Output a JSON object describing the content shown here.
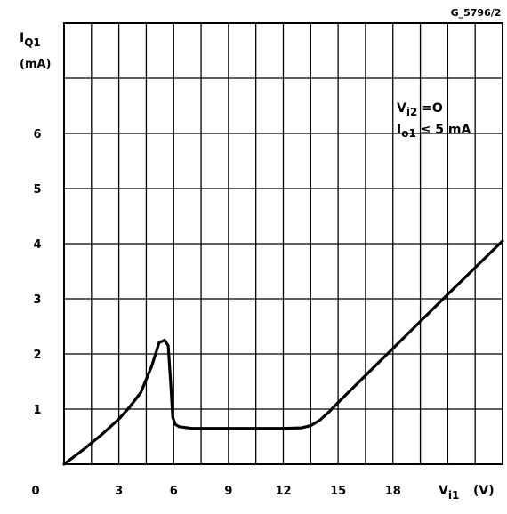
{
  "figure_code": "G_5796/2",
  "chart_data": {
    "type": "line",
    "ylabel_main": "I",
    "ylabel_sub": "Q1",
    "yunit": "(mA)",
    "xlabel_main": "V",
    "xlabel_sub": "i1",
    "xunit": "(V)",
    "xlim": [
      0,
      24
    ],
    "ylim": [
      0,
      8
    ],
    "x_ticks": [
      {
        "value": 0,
        "label": "0"
      },
      {
        "value": 3,
        "label": "3"
      },
      {
        "value": 6,
        "label": "6"
      },
      {
        "value": 9,
        "label": "9"
      },
      {
        "value": 12,
        "label": "12"
      },
      {
        "value": 15,
        "label": "15"
      },
      {
        "value": 18,
        "label": "18"
      }
    ],
    "y_ticks": [
      {
        "value": 1,
        "label": "1"
      },
      {
        "value": 2,
        "label": "2"
      },
      {
        "value": 3,
        "label": "3"
      },
      {
        "value": 4,
        "label": "4"
      },
      {
        "value": 5,
        "label": "5"
      },
      {
        "value": 6,
        "label": "6"
      }
    ],
    "grid": true,
    "annotations": [
      {
        "main": "V",
        "sub": "i2",
        "rest": " =O"
      },
      {
        "main": "I",
        "sub": "o1",
        "rest": " ≤ 5 mA"
      }
    ],
    "series": [
      {
        "x": [
          0,
          1,
          2,
          3,
          3.6,
          4.2,
          4.8,
          5.2,
          5.5,
          5.7,
          5.85,
          5.95,
          6.1,
          6.3,
          7,
          9,
          12,
          13,
          13.5,
          14,
          14.5,
          15,
          18,
          21,
          24
        ],
        "y": [
          0,
          0.25,
          0.52,
          0.82,
          1.04,
          1.3,
          1.78,
          2.2,
          2.25,
          2.15,
          1.4,
          0.85,
          0.72,
          0.68,
          0.65,
          0.65,
          0.65,
          0.66,
          0.7,
          0.8,
          0.95,
          1.12,
          2.1,
          3.08,
          4.05
        ]
      }
    ]
  }
}
